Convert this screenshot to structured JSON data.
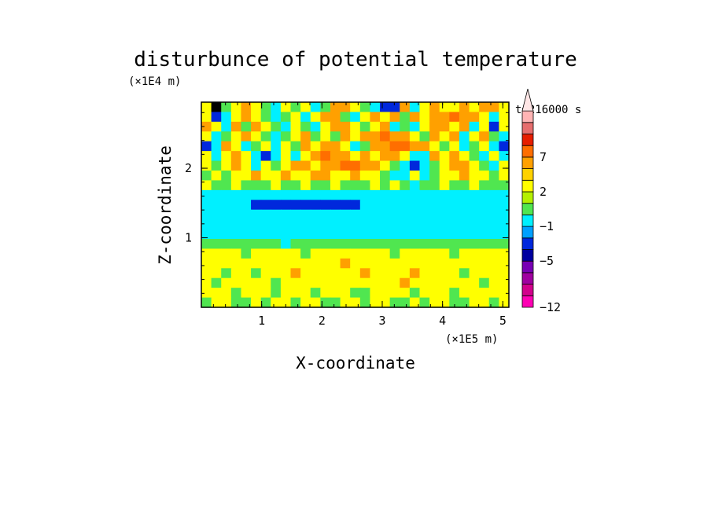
{
  "chart_data": {
    "type": "heatmap",
    "title": "disturbunce of potential temperature",
    "time_label": "t=216000 s",
    "xlabel": "X-coordinate",
    "ylabel": "Z-coordinate",
    "x_unit": "(×1E5 m)",
    "y_unit": "(×1E4 m)",
    "xlim": [
      0,
      5.1
    ],
    "ylim": [
      0,
      2.95
    ],
    "x_ticks": [
      {
        "value": 1,
        "label": "1"
      },
      {
        "value": 2,
        "label": "2"
      },
      {
        "value": 3,
        "label": "3"
      },
      {
        "value": 4,
        "label": "4"
      },
      {
        "value": 5,
        "label": "5"
      }
    ],
    "y_ticks": [
      {
        "value": 1,
        "label": "1"
      },
      {
        "value": 2,
        "label": "2"
      }
    ],
    "colorbar": {
      "colors": [
        "#ff00b4",
        "#d2008c",
        "#a000a0",
        "#7800b4",
        "#0000a0",
        "#0028dc",
        "#00a0ff",
        "#00f0ff",
        "#50e650",
        "#b4f000",
        "#ffff00",
        "#ffd200",
        "#ffa000",
        "#ff6e00",
        "#e61e00",
        "#e66e6e",
        "#ffb4b4",
        "#ffe6e6"
      ],
      "tick_labels": [
        {
          "level": 0,
          "label": "−12"
        },
        {
          "level": 4,
          "label": "−5"
        },
        {
          "level": 7,
          "label": "−1"
        },
        {
          "level": 10,
          "label": "2"
        },
        {
          "level": 13,
          "label": "7"
        }
      ]
    },
    "field_rows_top_to_bottom": [
      "YBGYOYGCYGYCGOOYGCDDOCYOYYOYOOY",
      "YDCYOYGCGYCYOOGCYOYOGOYOOROOYCY",
      "OYCOGOYGCYGCYOOYGYOCGCYOOYOCYDY",
      "YCGYOYGCGYOGYGOYOOROOYGOYOCYOGC",
      "DCOYCGYCYGOYOOYCGOORROOYGYCGYCD",
      "YCYOYCDCYCYOROOYOYOOYCCOYOYGCYC",
      "YGYOYCYGYOOYOORROOYGCDCGYOOYGCY",
      "GYGYYOYYOYYOOYYOYYGCCYCGYYOYYGY",
      "YGGYGGGYGGYGGYGGGYGYGCGGYGGYGGG",
      "CCCCCCCCCCCCCCCCCCCCCCCCCCCCCCC",
      "CCCCCDDDDDDDDDDDCCCCCCCCCCCCCCC",
      "CCCCCCCCCCCCCCCCCCCCCCCCCCCCCCC",
      "CCCCCCCCCCCCCCCCCCCCCCCCCCCCCCC",
      "CCCCCCCCCCCCCCCCCCCCCCCCCCCCCCC",
      "GGGGGGGGCGGGGGGGGGGGGGGGGGGGGGG",
      "YYYYGYYYYYGYYYYYYYYGYYYYYGYYYYY",
      "YYYYYYYYYYYYYYOYYYYYYYYYYYYYYYY",
      "YYGYYGYYYOYYYYYYOYYYYOYYYYGYYYY",
      "YGYYYYYGYYYYYYYYYYYYOYYYYYYYGYY",
      "YYYGYYYGYYYGYYYGGYYYYGYYYGYYYYY",
      "GYYGGYGYYGYYGGYYGYYGGYGYYGGYYGY"
    ],
    "field_legend": {
      "C": 7,
      "D": 5,
      "G": 8,
      "Y": 10,
      "O": 12,
      "R": 13
    }
  }
}
